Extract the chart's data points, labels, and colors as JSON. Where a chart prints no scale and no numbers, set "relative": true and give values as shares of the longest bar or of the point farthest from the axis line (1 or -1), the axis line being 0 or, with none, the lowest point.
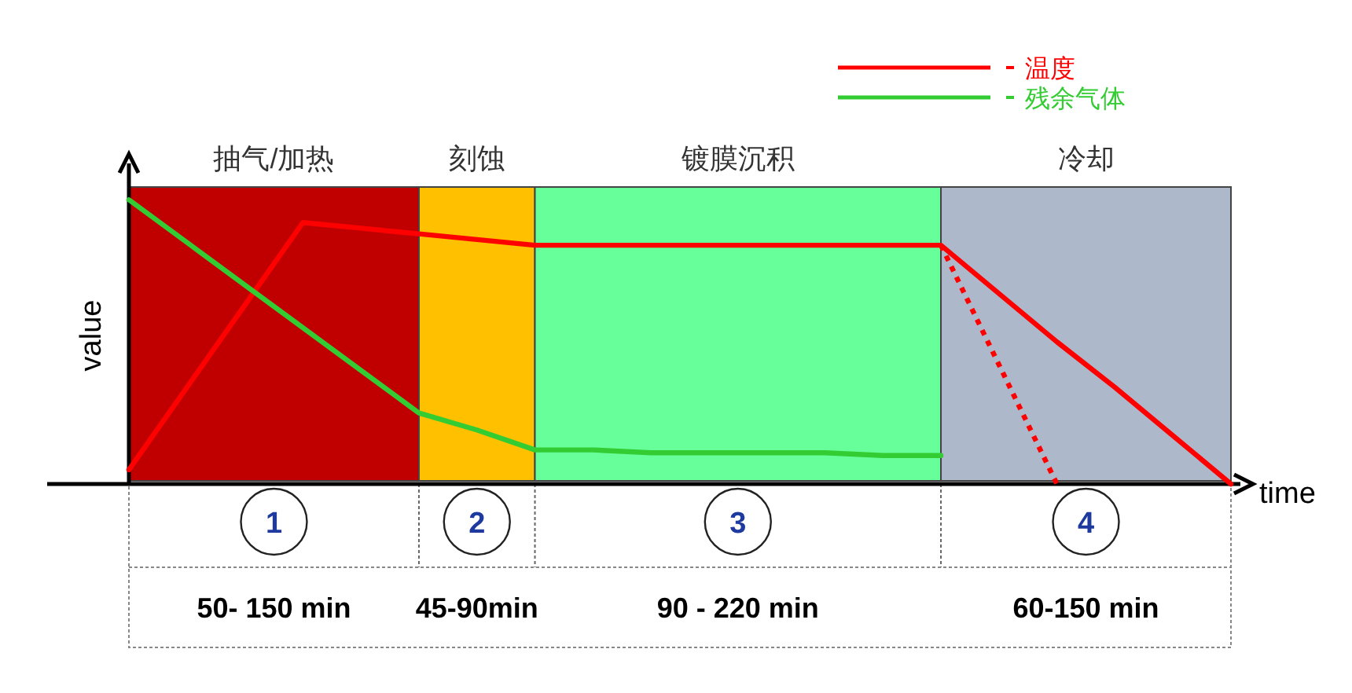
{
  "chart_data": {
    "type": "line",
    "xlabel": "time",
    "ylabel": "value",
    "relative": true,
    "legend": "top right",
    "categories": [
      null,
      null,
      null,
      null,
      null,
      null,
      null,
      null,
      null,
      null,
      null,
      null,
      null,
      null,
      null,
      null,
      null,
      null,
      null,
      null
    ],
    "series": [
      {
        "name": "温度",
        "color": "#ff0000",
        "line_style": "solid",
        "values": [
          0.05,
          0.34,
          0.63,
          0.92,
          0.9,
          0.88,
          0.86,
          0.84,
          0.84,
          0.84,
          0.84,
          0.84,
          0.84,
          0.84,
          0.84,
          0.67,
          0.5,
          0.34,
          0.17,
          0
        ]
      },
      {
        "color": "#ff0000",
        "line_style": "dotted",
        "values": [
          null,
          null,
          null,
          null,
          null,
          null,
          null,
          null,
          null,
          null,
          null,
          null,
          null,
          null,
          0.84,
          0.42,
          0,
          null,
          null,
          null
        ]
      },
      {
        "name": "残余气体",
        "color": "#33cc33",
        "line_style": "solid",
        "values": [
          1,
          0.85,
          0.7,
          0.55,
          0.4,
          0.25,
          0.19,
          0.12,
          0.12,
          0.11,
          0.11,
          0.11,
          0.11,
          0.1,
          0.1,
          null,
          null,
          null,
          null,
          null
        ]
      }
    ],
    "annotations": [
      "抽气/加热",
      "刻蚀",
      "镀膜沉积",
      "冷却",
      "1",
      "2",
      "3",
      "4",
      "50- 150 min",
      "45-90min",
      "90 - 220 min",
      "60-150 min"
    ]
  }
}
